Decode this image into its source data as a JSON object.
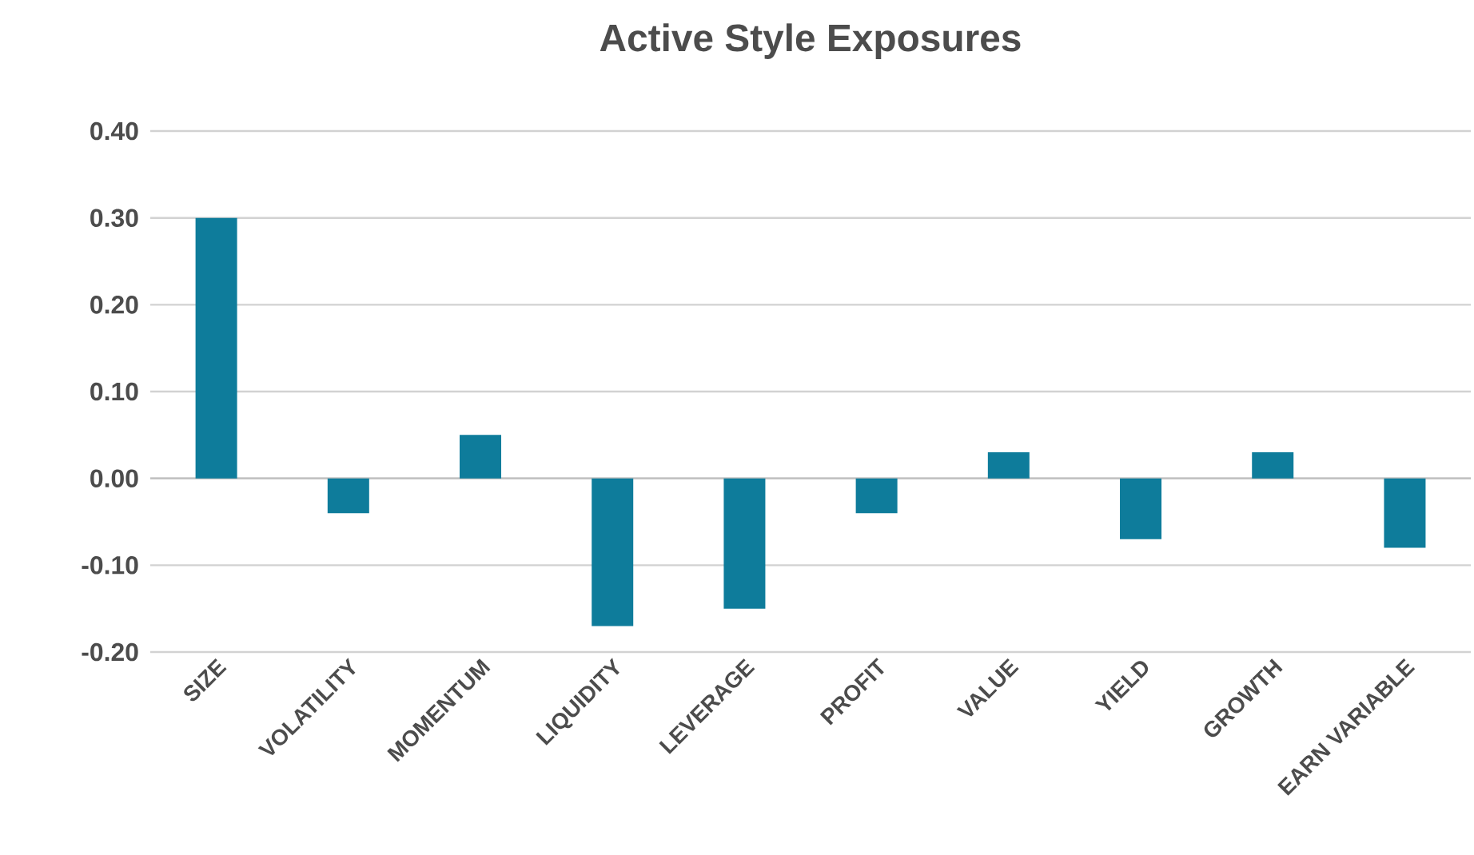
{
  "chart_data": {
    "type": "bar",
    "title": "Active Style Exposures",
    "categories": [
      "SIZE",
      "VOLATILITY",
      "MOMENTUM",
      "LIQUIDITY",
      "LEVERAGE",
      "PROFIT",
      "VALUE",
      "YIELD",
      "GROWTH",
      "EARN VARIABLE"
    ],
    "values": [
      0.3,
      -0.04,
      0.05,
      -0.17,
      -0.15,
      -0.04,
      0.03,
      -0.07,
      0.03,
      -0.08
    ],
    "color": "#0e7c9b",
    "ylim": [
      -0.2,
      0.4
    ],
    "yticks": [
      {
        "value": -0.2,
        "label": "-0.20"
      },
      {
        "value": -0.1,
        "label": "-0.10"
      },
      {
        "value": 0,
        "label": "0.00"
      },
      {
        "value": 0.1,
        "label": "0.10"
      },
      {
        "value": 0.2,
        "label": "0.20"
      },
      {
        "value": 0.3,
        "label": "0.30"
      },
      {
        "value": 0.4,
        "label": "0.40"
      }
    ],
    "grid": "y"
  }
}
